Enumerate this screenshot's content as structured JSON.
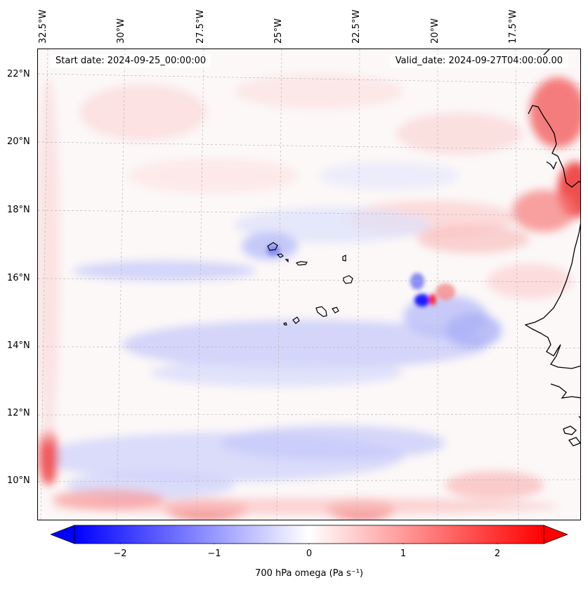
{
  "header": {
    "start_date": "Start date: 2024-09-25_00:00:00",
    "valid_date": "Valid_date: 2024-09-27T04:00:00.00"
  },
  "map": {
    "variable": "700 hPa omega",
    "units": "Pa s⁻¹",
    "lon_labels": [
      "32.5°W",
      "30°W",
      "27.5°W",
      "25°W",
      "22.5°W",
      "20°W",
      "17.5°W"
    ],
    "lat_labels": [
      "22°N",
      "20°N",
      "18°N",
      "16°N",
      "14°N",
      "12°N",
      "10°N"
    ],
    "colormap": {
      "negative": "#0000ff",
      "zero": "#ffffff",
      "positive": "#ff0000"
    },
    "coastline_color": "#000000",
    "gridline_color": "#b0b0b0"
  },
  "colorbar": {
    "ticks": [
      "−2",
      "−1",
      "0",
      "1",
      "2"
    ],
    "range": [
      -2.7,
      2.7
    ],
    "extend": "both",
    "label": "700 hPa omega (Pa s⁻¹)"
  }
}
